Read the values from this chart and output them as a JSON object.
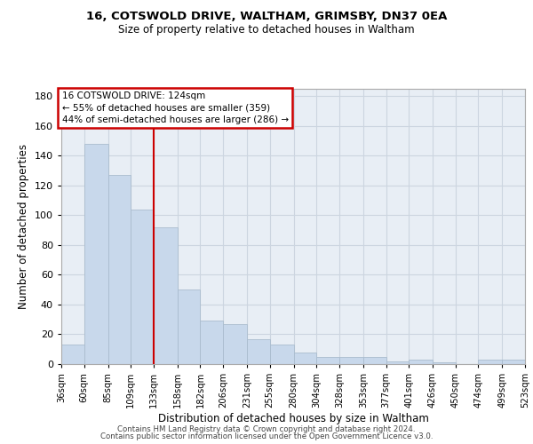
{
  "title1": "16, COTSWOLD DRIVE, WALTHAM, GRIMSBY, DN37 0EA",
  "title2": "Size of property relative to detached houses in Waltham",
  "xlabel": "Distribution of detached houses by size in Waltham",
  "ylabel": "Number of detached properties",
  "bar_color": "#c8d8eb",
  "bar_edge_color": "#aabcce",
  "grid_color": "#ccd5e0",
  "background_color": "#e8eef5",
  "vline_color": "#cc0000",
  "annotation_title": "16 COTSWOLD DRIVE: 124sqm",
  "annotation_line1": "← 55% of detached houses are smaller (359)",
  "annotation_line2": "44% of semi-detached houses are larger (286) →",
  "annotation_box_edge_color": "#cc0000",
  "bin_edges": [
    36,
    60,
    85,
    109,
    133,
    158,
    182,
    206,
    231,
    255,
    280,
    304,
    328,
    353,
    377,
    401,
    426,
    450,
    474,
    499,
    523
  ],
  "bin_labels": [
    "36sqm",
    "60sqm",
    "85sqm",
    "109sqm",
    "133sqm",
    "158sqm",
    "182sqm",
    "206sqm",
    "231sqm",
    "255sqm",
    "280sqm",
    "304sqm",
    "328sqm",
    "353sqm",
    "377sqm",
    "401sqm",
    "426sqm",
    "450sqm",
    "474sqm",
    "499sqm",
    "523sqm"
  ],
  "bar_heights": [
    13,
    148,
    127,
    104,
    92,
    50,
    29,
    27,
    17,
    13,
    8,
    5,
    5,
    5,
    2,
    3,
    1,
    0,
    3,
    3
  ],
  "ylim": [
    0,
    185
  ],
  "yticks": [
    0,
    20,
    40,
    60,
    80,
    100,
    120,
    140,
    160,
    180
  ],
  "vline_x_bin": 4,
  "footer1": "Contains HM Land Registry data © Crown copyright and database right 2024.",
  "footer2": "Contains public sector information licensed under the Open Government Licence v3.0."
}
